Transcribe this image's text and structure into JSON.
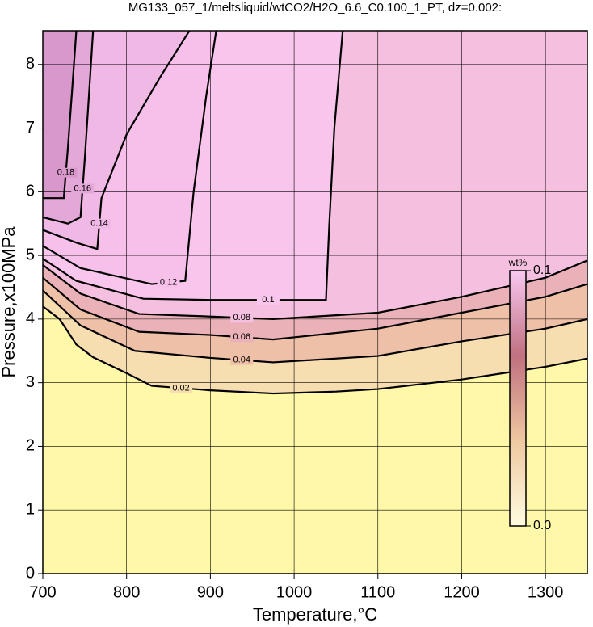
{
  "chart_data": {
    "type": "contour",
    "title": "MG133_057_1/meltsliquid/wtCO2/H2O_6.6_C0.100_1_PT, dz=0.002:",
    "x_label": "Temperature,°C",
    "y_label": "Pressure,x100MPa",
    "xlim": [
      700,
      1350
    ],
    "ylim": [
      0,
      8.53
    ],
    "xticks": [
      700,
      800,
      900,
      1000,
      1100,
      1200,
      1300
    ],
    "yticks": [
      0,
      1,
      2,
      3,
      4,
      5,
      6,
      7,
      8
    ],
    "grid": true,
    "background": "#fff8a8",
    "contours": [
      {
        "level": 0.02,
        "color": "#f7deb0",
        "x": [
          700,
          720,
          740,
          760,
          800,
          830,
          900,
          975,
          1050,
          1100,
          1200,
          1300,
          1350
        ],
        "y": [
          4.2,
          4.0,
          3.6,
          3.4,
          3.15,
          2.95,
          2.88,
          2.83,
          2.86,
          2.9,
          3.05,
          3.25,
          3.38
        ]
      },
      {
        "level": 0.04,
        "color": "#efc0a8",
        "x": [
          700,
          745,
          810,
          900,
          975,
          1100,
          1200,
          1300,
          1350
        ],
        "y": [
          4.45,
          3.9,
          3.5,
          3.39,
          3.32,
          3.42,
          3.65,
          3.85,
          4.0
        ]
      },
      {
        "level": 0.06,
        "color": "#eab2b8",
        "x": [
          700,
          745,
          815,
          900,
          975,
          1100,
          1200,
          1300,
          1350
        ],
        "y": [
          4.65,
          4.15,
          3.8,
          3.75,
          3.68,
          3.85,
          4.1,
          4.35,
          4.55
        ]
      },
      {
        "level": 0.08,
        "color": "#f5c0e0",
        "x": [
          700,
          745,
          815,
          900,
          975,
          1100,
          1200,
          1300,
          1350
        ],
        "y": [
          4.85,
          4.4,
          4.08,
          4.04,
          4.0,
          4.1,
          4.35,
          4.65,
          4.92
        ]
      },
      {
        "level": 0.1,
        "color": "#f8c6ec",
        "x": [
          700,
          740,
          820,
          900,
          1038,
          1042,
          1048,
          1058
        ],
        "y": [
          4.95,
          4.6,
          4.32,
          4.3,
          4.3,
          5.5,
          7.0,
          8.53
        ]
      },
      {
        "level": 0.12,
        "color": "#f6c0ea",
        "x": [
          700,
          745,
          830,
          870,
          880,
          895,
          907
        ],
        "y": [
          5.15,
          4.8,
          4.55,
          4.6,
          6.0,
          7.5,
          8.53
        ]
      },
      {
        "level": 0.14,
        "color": "#f0b8e4",
        "x": [
          700,
          740,
          765,
          770,
          800,
          840,
          875
        ],
        "y": [
          5.4,
          5.2,
          5.1,
          5.9,
          6.9,
          7.8,
          8.53
        ]
      },
      {
        "level": 0.16,
        "color": "#e4a8d8",
        "x": [
          700,
          730,
          745,
          750,
          755,
          760
        ],
        "y": [
          5.6,
          5.5,
          5.6,
          6.5,
          7.5,
          8.53
        ]
      },
      {
        "level": 0.18,
        "color": "#d898cc",
        "x": [
          700,
          725,
          730,
          735,
          740
        ],
        "y": [
          5.9,
          5.9,
          6.7,
          7.6,
          8.53
        ]
      }
    ],
    "colorbar": {
      "label": "wt%",
      "lim": [
        0,
        0.1
      ],
      "ticks": [
        {
          "value": 0,
          "label": "0.0"
        },
        0.1
      ],
      "colors": [
        "#fffce0",
        "#eec8a0",
        "#c07080",
        "#f8c8f0"
      ]
    }
  }
}
